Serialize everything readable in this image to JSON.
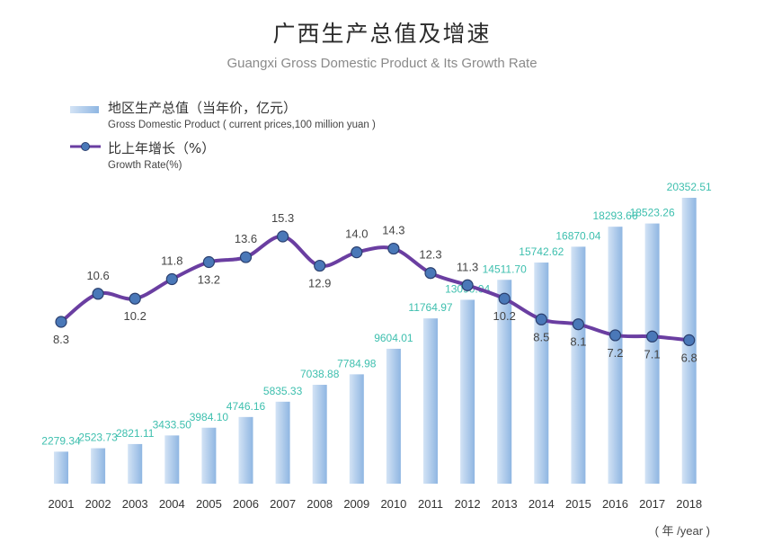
{
  "chart_data": {
    "type": "bar",
    "title": "广西生产总值及增速",
    "subtitle": "Guangxi Gross Domestic Product & Its Growth Rate",
    "xlabel": "( 年 /year )",
    "ylabel": "",
    "categories": [
      "2001",
      "2002",
      "2003",
      "2004",
      "2005",
      "2006",
      "2007",
      "2008",
      "2009",
      "2010",
      "2011",
      "2012",
      "2013",
      "2014",
      "2015",
      "2016",
      "2017",
      "2018"
    ],
    "series": [
      {
        "name": "地区生产总值（当年价，亿元）",
        "name_en": "Gross Domestic Product ( current prices,100 million yuan )",
        "type": "bar",
        "color": "#9dc0e6",
        "label_color": "#3dbfae",
        "values": [
          2279.34,
          2523.73,
          2821.11,
          3433.5,
          3984.1,
          4746.16,
          5835.33,
          7038.88,
          7784.98,
          9604.01,
          11764.97,
          13090.04,
          14511.7,
          15742.62,
          16870.04,
          18293.66,
          18523.26,
          20352.51
        ],
        "value_labels": [
          "2279.34",
          "2523.73",
          "2821.11",
          "3433.50",
          "3984.10",
          "4746.16",
          "5835.33",
          "7038.88",
          "7784.98",
          "9604.01",
          "11764.97",
          "13090.04",
          "14511.70",
          "15742.62",
          "16870.04",
          "18293.66",
          "18523.26",
          "20352.51"
        ],
        "ylim": [
          0,
          21000
        ]
      },
      {
        "name": "比上年增长（%）",
        "name_en": "Growth Rate(%)",
        "type": "line",
        "color": "#6a3ea1",
        "marker_color": "#4a78b8",
        "values": [
          8.3,
          10.6,
          10.2,
          11.8,
          13.2,
          13.6,
          15.3,
          12.9,
          14.0,
          14.3,
          12.3,
          11.3,
          10.2,
          8.5,
          8.1,
          7.2,
          7.1,
          6.8
        ],
        "value_labels": [
          "8.3",
          "10.6",
          "10.2",
          "11.8",
          "13.2",
          "13.6",
          "15.3",
          "12.9",
          "14.0",
          "14.3",
          "12.3",
          "11.3",
          "10.2",
          "8.5",
          "8.1",
          "7.2",
          "7.1",
          "6.8"
        ],
        "label_positions": [
          "below",
          "above",
          "below",
          "above",
          "below",
          "above",
          "above",
          "below",
          "above",
          "above",
          "above",
          "above",
          "below",
          "below",
          "below",
          "below",
          "below",
          "below"
        ],
        "ylim": [
          6.2,
          15.6
        ]
      }
    ],
    "grid": false,
    "legend": "top-left"
  },
  "legend": {
    "gdp_cn": "地区生产总值（当年价，亿元）",
    "gdp_en": "Gross Domestic Product ( current prices,100 million yuan )",
    "rate_cn": "比上年增长（%）",
    "rate_en": "Growth Rate(%)"
  }
}
